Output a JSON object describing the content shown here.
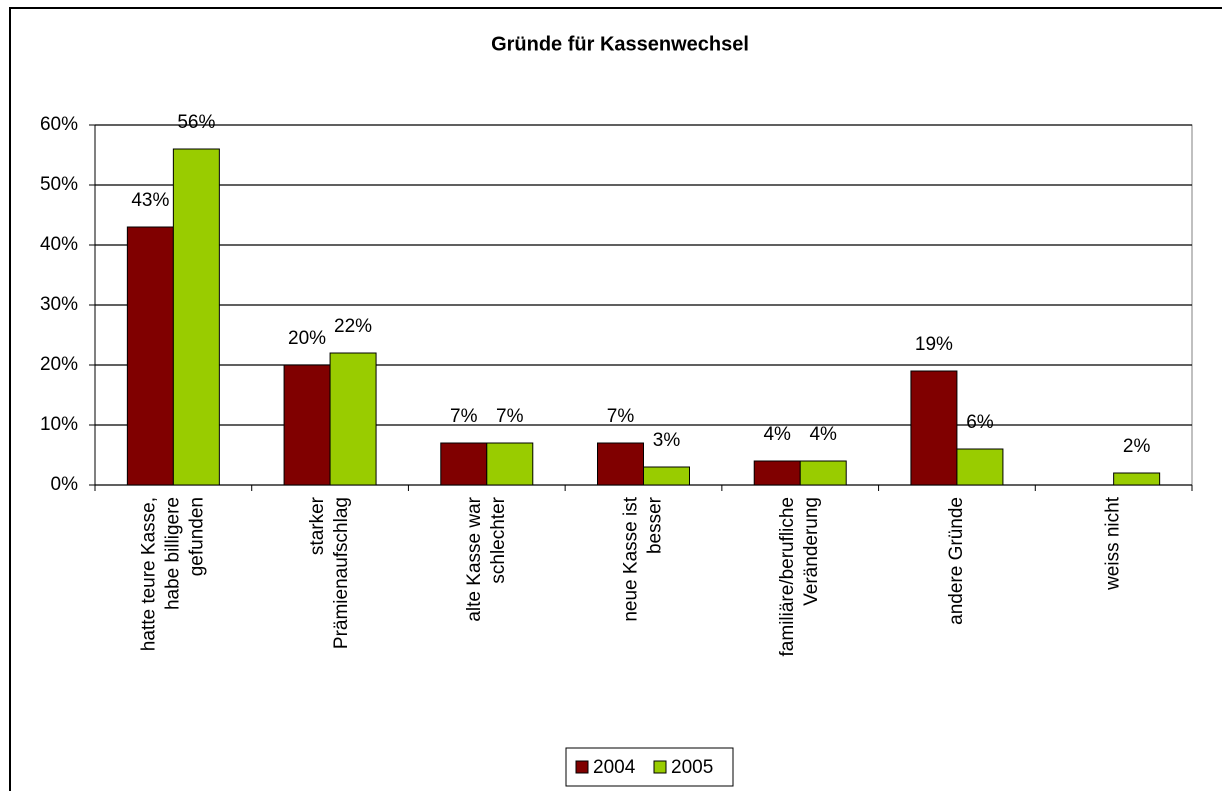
{
  "chart_data": {
    "type": "bar",
    "title": "Gründe für Kassenwechsel",
    "categories": [
      [
        "hatte teure Kasse,",
        "habe billigere",
        "gefunden"
      ],
      [
        "starker",
        "Prämienaufschlag"
      ],
      [
        "alte Kasse war",
        "schlechter"
      ],
      [
        "neue Kasse ist",
        "besser"
      ],
      [
        "familiäre/berufliche",
        "Veränderung"
      ],
      [
        "andere Gründe"
      ],
      [
        "weiss nicht"
      ]
    ],
    "series": [
      {
        "name": "2004",
        "color": "#800000",
        "values": [
          43,
          20,
          7,
          7,
          4,
          19,
          null
        ],
        "value_labels": [
          "43%",
          "20%",
          "7%",
          "7%",
          "4%",
          "19%",
          null
        ]
      },
      {
        "name": "2005",
        "color": "#99cc00",
        "values": [
          56,
          22,
          7,
          3,
          4,
          6,
          2
        ],
        "value_labels": [
          "56%",
          "22%",
          "7%",
          "3%",
          "4%",
          "6%",
          "2%"
        ]
      }
    ],
    "ylim": [
      0,
      60
    ],
    "yticks": [
      {
        "value": 0,
        "label": "0%"
      },
      {
        "value": 10,
        "label": "10%"
      },
      {
        "value": 20,
        "label": "20%"
      },
      {
        "value": 30,
        "label": "30%"
      },
      {
        "value": 40,
        "label": "40%"
      },
      {
        "value": 50,
        "label": "50%"
      },
      {
        "value": 60,
        "label": "60%"
      }
    ],
    "grid": true,
    "legend": "bottom"
  }
}
